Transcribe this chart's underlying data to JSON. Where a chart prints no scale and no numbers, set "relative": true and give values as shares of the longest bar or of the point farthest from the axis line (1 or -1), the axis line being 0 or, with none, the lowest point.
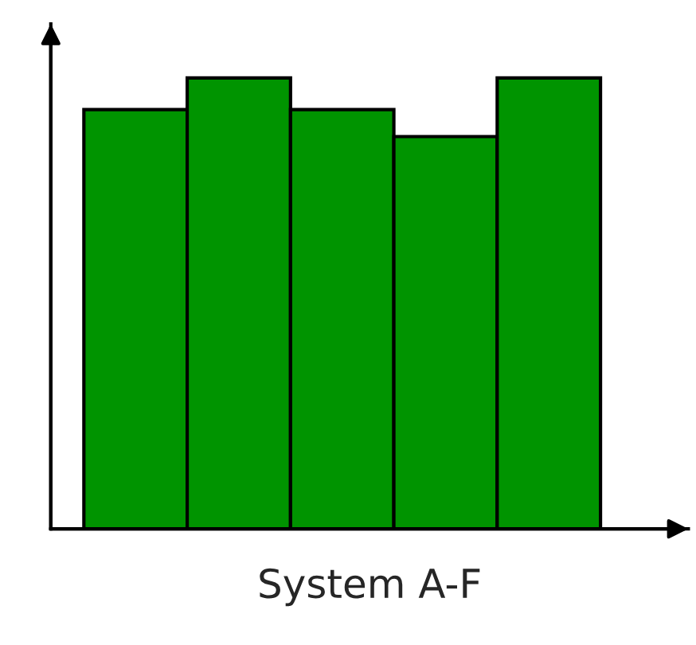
{
  "chart_data": {
    "type": "bar",
    "relative": true,
    "xlabel": "System A-F",
    "categories": [
      null,
      null,
      null,
      null,
      null
    ],
    "values": [
      0.93,
      1,
      0.93,
      0.87,
      1
    ],
    "color": "#009400",
    "grid": false,
    "legend": false
  }
}
